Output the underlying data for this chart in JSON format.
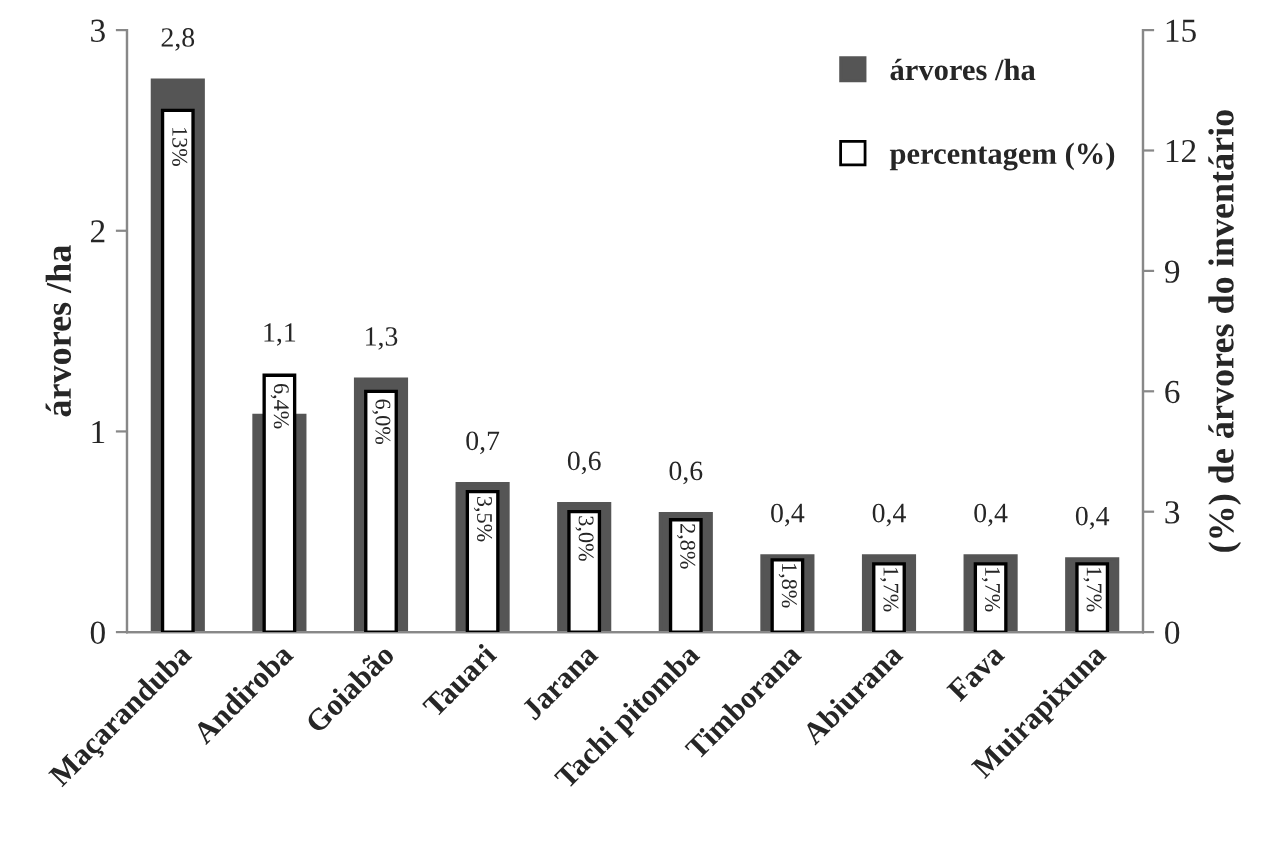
{
  "chart_data": {
    "type": "bar",
    "ylabel": "árvores /ha",
    "y2label": "(%) de árvores do inventário",
    "categories": [
      "Maçaranduba",
      "Andiroba",
      "Goiabão",
      "Tauari",
      "Jarana",
      "Tachi pitomba",
      "Timborana",
      "Abiurana",
      "Fava",
      "Muirapixuna"
    ],
    "series": [
      {
        "name": "árvores /ha",
        "color": "#555555",
        "values": [
          2.75,
          1.08,
          1.26,
          0.74,
          0.64,
          0.59,
          0.38,
          0.38,
          0.38,
          0.365
        ],
        "value_labels": [
          "2,8",
          "1,1",
          "1,3",
          "0,7",
          "0,6",
          "0,6",
          "0,4",
          "0,4",
          "0,4",
          "0,4"
        ]
      },
      {
        "name": "percentagem (%)",
        "color": "#ffffff",
        "axis": "y2",
        "values": [
          13,
          6.4,
          6.0,
          3.5,
          3.0,
          2.8,
          1.8,
          1.7,
          1.7,
          1.7
        ],
        "value_labels": [
          "13%",
          "6,4%",
          "6,0%",
          "3,5%",
          "3,0%",
          "2,8%",
          "1,8%",
          "1,7%",
          "1,7%",
          "1,7%"
        ]
      }
    ],
    "ylim": [
      0,
      3
    ],
    "yticks": [
      0,
      1,
      2,
      3
    ],
    "y2lim": [
      0,
      15
    ],
    "y2ticks": [
      0,
      3,
      6,
      9,
      12,
      15
    ],
    "legend": "top right",
    "grid": false
  }
}
